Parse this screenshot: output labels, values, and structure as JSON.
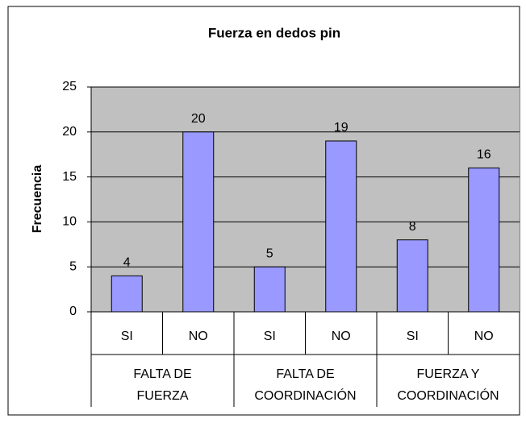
{
  "chart_data": {
    "type": "bar",
    "title": "Fuerza en dedos pin",
    "y_label": "Frecuencia",
    "categories": [
      "SI",
      "NO",
      "SI",
      "NO",
      "SI",
      "NO"
    ],
    "groups": [
      [
        "FALTA DE",
        "FUERZA"
      ],
      [
        "FALTA DE",
        "COORDINACIÓN"
      ],
      [
        "FUERZA Y",
        "COORDINACIÓN"
      ]
    ],
    "values": [
      4,
      20,
      5,
      19,
      8,
      16
    ],
    "color": "#9999ff",
    "ylim": [
      0,
      25
    ],
    "yticks": [
      0,
      5,
      10,
      15,
      20,
      25
    ],
    "grid": true
  }
}
